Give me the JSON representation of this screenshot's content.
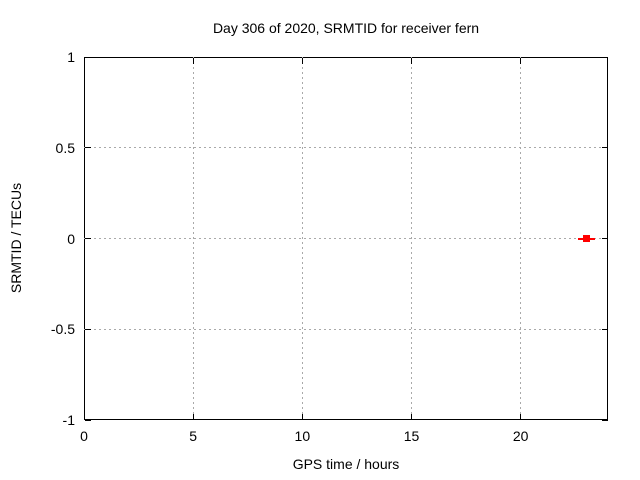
{
  "chart_data": {
    "type": "scatter",
    "title": "Day 306 of 2020, SRMTID for receiver fern",
    "xlabel": "GPS time / hours",
    "ylabel": "SRMTID / TECUs",
    "xlim": [
      0,
      24
    ],
    "ylim": [
      -1,
      1
    ],
    "xticks": [
      {
        "value": 0,
        "label": "0"
      },
      {
        "value": 5,
        "label": "5"
      },
      {
        "value": 10,
        "label": "10"
      },
      {
        "value": 15,
        "label": "15"
      },
      {
        "value": 20,
        "label": "20"
      }
    ],
    "yticks": [
      {
        "value": -1,
        "label": "-1"
      },
      {
        "value": -0.5,
        "label": "-0.5"
      },
      {
        "value": 0,
        "label": "0"
      },
      {
        "value": 0.5,
        "label": "0.5"
      },
      {
        "value": 1,
        "label": "1"
      }
    ],
    "grid": true,
    "grid_style": "dashed",
    "legend_position": "none",
    "colors": {
      "marker": "#ff0000",
      "grid": "#a9a9a9",
      "axis": "#000000",
      "background": "#ffffff",
      "text": "#000000"
    },
    "series": [
      {
        "name": "SRMTID",
        "marker": "filled-square-with-xerrorbar",
        "color": "#ff0000",
        "points": [
          {
            "x": 23,
            "y": 0
          }
        ]
      }
    ]
  }
}
